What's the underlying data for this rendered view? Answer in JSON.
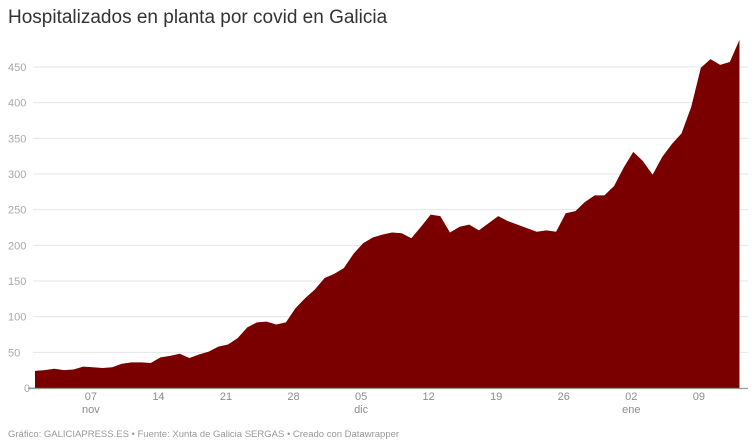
{
  "title": "Hospitalizados en planta por covid en Galicia",
  "footer": "Gráfico: GALICIAPRESS.ES • Fuente: Xunta de Galicia SERGAS • Creado con Datawrapper",
  "colors": {
    "area": "#7a0000",
    "grid": "#e6e6e6",
    "axis": "#999999"
  },
  "chart_data": {
    "type": "area",
    "title": "Hospitalizados en planta por covid en Galicia",
    "xlabel": "",
    "ylabel": "",
    "ylim": [
      0,
      490
    ],
    "yticks": [
      0,
      50,
      100,
      150,
      200,
      250,
      300,
      350,
      400,
      450
    ],
    "grid": true,
    "legend": "none",
    "x_start": "01 nov",
    "x_end": "13 ene",
    "xticks": [
      {
        "day_index": 6,
        "label": "07",
        "sublabel": "nov"
      },
      {
        "day_index": 13,
        "label": "14",
        "sublabel": ""
      },
      {
        "day_index": 20,
        "label": "21",
        "sublabel": ""
      },
      {
        "day_index": 27,
        "label": "28",
        "sublabel": ""
      },
      {
        "day_index": 34,
        "label": "05",
        "sublabel": "dic"
      },
      {
        "day_index": 41,
        "label": "12",
        "sublabel": ""
      },
      {
        "day_index": 48,
        "label": "19",
        "sublabel": ""
      },
      {
        "day_index": 55,
        "label": "26",
        "sublabel": ""
      },
      {
        "day_index": 62,
        "label": "02",
        "sublabel": "ene"
      },
      {
        "day_index": 69,
        "label": "09",
        "sublabel": ""
      }
    ],
    "series": [
      {
        "name": "Hospitalizados en planta",
        "values": [
          24,
          25,
          27,
          25,
          26,
          30,
          29,
          28,
          29,
          34,
          36,
          36,
          35,
          43,
          45,
          48,
          42,
          47,
          51,
          58,
          61,
          70,
          85,
          92,
          93,
          89,
          92,
          112,
          126,
          138,
          154,
          160,
          168,
          188,
          203,
          211,
          215,
          218,
          217,
          210,
          226,
          243,
          241,
          218,
          226,
          229,
          221,
          231,
          241,
          234,
          229,
          224,
          219,
          221,
          219,
          245,
          248,
          261,
          270,
          270,
          283,
          309,
          331,
          318,
          299,
          324,
          342,
          357,
          394,
          449,
          461,
          453,
          457,
          488
        ]
      }
    ]
  }
}
